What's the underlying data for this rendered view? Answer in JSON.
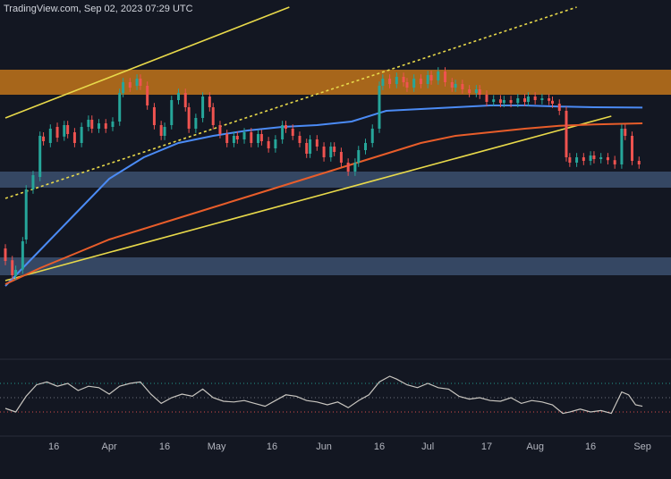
{
  "watermark": "TradingView.com, Sep 02, 2023 07:29 UTC",
  "chart_data": [
    {
      "type": "candlestick",
      "title": "",
      "x_ticks": [
        "16",
        "Apr",
        "16",
        "May",
        "16",
        "Jun",
        "16",
        "Jul",
        "17",
        "Aug",
        "16",
        "Sep"
      ],
      "x_range_days": [
        0,
        185
      ],
      "tick_days": [
        14,
        30,
        46,
        61,
        77,
        92,
        108,
        122,
        139,
        153,
        169,
        184
      ],
      "price_range": [
        0.0,
        1.0
      ],
      "zones": [
        {
          "name": "resistance-zone",
          "low": 0.735,
          "high": 0.805,
          "color": "#c8781a"
        },
        {
          "name": "support-zone",
          "low": 0.475,
          "high": 0.52,
          "color": "#3d5271"
        },
        {
          "name": "lower-support-zone",
          "low": 0.23,
          "high": 0.28,
          "color": "#3d5271"
        }
      ],
      "lines": [
        {
          "name": "upper-channel",
          "style": "solid",
          "color": "#e8d94a",
          "points": [
            [
              0,
              0.67
            ],
            [
              82,
              0.98
            ]
          ]
        },
        {
          "name": "mid-channel",
          "style": "dashed",
          "color": "#e8d94a",
          "points": [
            [
              0,
              0.445
            ],
            [
              165,
              0.98
            ]
          ]
        },
        {
          "name": "lower-channel",
          "style": "solid",
          "color": "#e8d94a",
          "points": [
            [
              0,
              0.215
            ],
            [
              175,
              0.675
            ]
          ]
        }
      ],
      "series": [
        {
          "name": "",
          "kind": "ma",
          "color": "#4b8bf5",
          "points": [
            [
              0,
              0.2
            ],
            [
              10,
              0.3
            ],
            [
              20,
              0.4
            ],
            [
              30,
              0.5
            ],
            [
              40,
              0.56
            ],
            [
              50,
              0.6
            ],
            [
              60,
              0.62
            ],
            [
              70,
              0.635
            ],
            [
              80,
              0.645
            ],
            [
              90,
              0.65
            ],
            [
              100,
              0.66
            ],
            [
              110,
              0.69
            ],
            [
              120,
              0.695
            ],
            [
              130,
              0.7
            ],
            [
              140,
              0.705
            ],
            [
              150,
              0.705
            ],
            [
              160,
              0.702
            ],
            [
              170,
              0.7
            ],
            [
              184,
              0.699
            ]
          ]
        },
        {
          "name": "",
          "kind": "ma",
          "color": "#e85d2a",
          "points": [
            [
              0,
              0.205
            ],
            [
              10,
              0.25
            ],
            [
              20,
              0.29
            ],
            [
              30,
              0.33
            ],
            [
              40,
              0.36
            ],
            [
              50,
              0.39
            ],
            [
              60,
              0.42
            ],
            [
              70,
              0.45
            ],
            [
              80,
              0.48
            ],
            [
              90,
              0.51
            ],
            [
              100,
              0.54
            ],
            [
              110,
              0.57
            ],
            [
              120,
              0.6
            ],
            [
              130,
              0.62
            ],
            [
              140,
              0.63
            ],
            [
              150,
              0.64
            ],
            [
              160,
              0.648
            ],
            [
              170,
              0.652
            ],
            [
              184,
              0.655
            ]
          ]
        }
      ],
      "candles": [
        {
          "x": 0,
          "o": 0.305,
          "c": 0.27
        },
        {
          "x": 2,
          "o": 0.272,
          "c": 0.23
        },
        {
          "x": 3,
          "o": 0.228,
          "c": 0.245
        },
        {
          "x": 5,
          "o": 0.246,
          "c": 0.325
        },
        {
          "x": 6,
          "o": 0.33,
          "c": 0.47
        },
        {
          "x": 8,
          "o": 0.47,
          "c": 0.51
        },
        {
          "x": 10,
          "o": 0.505,
          "c": 0.62
        },
        {
          "x": 11,
          "o": 0.618,
          "c": 0.605
        },
        {
          "x": 13,
          "o": 0.6,
          "c": 0.64
        },
        {
          "x": 15,
          "o": 0.645,
          "c": 0.615
        },
        {
          "x": 17,
          "o": 0.618,
          "c": 0.65
        },
        {
          "x": 18,
          "o": 0.65,
          "c": 0.625
        },
        {
          "x": 20,
          "o": 0.63,
          "c": 0.6
        },
        {
          "x": 22,
          "o": 0.6,
          "c": 0.645
        },
        {
          "x": 24,
          "o": 0.645,
          "c": 0.665
        },
        {
          "x": 25,
          "o": 0.665,
          "c": 0.64
        },
        {
          "x": 27,
          "o": 0.64,
          "c": 0.655
        },
        {
          "x": 29,
          "o": 0.655,
          "c": 0.64
        },
        {
          "x": 31,
          "o": 0.645,
          "c": 0.66
        },
        {
          "x": 33,
          "o": 0.66,
          "c": 0.74
        },
        {
          "x": 34,
          "o": 0.74,
          "c": 0.77
        },
        {
          "x": 36,
          "o": 0.77,
          "c": 0.755
        },
        {
          "x": 38,
          "o": 0.76,
          "c": 0.78
        },
        {
          "x": 39,
          "o": 0.78,
          "c": 0.76
        },
        {
          "x": 41,
          "o": 0.76,
          "c": 0.705
        },
        {
          "x": 43,
          "o": 0.7,
          "c": 0.65
        },
        {
          "x": 45,
          "o": 0.65,
          "c": 0.62
        },
        {
          "x": 46,
          "o": 0.62,
          "c": 0.645
        },
        {
          "x": 48,
          "o": 0.65,
          "c": 0.72
        },
        {
          "x": 50,
          "o": 0.72,
          "c": 0.74
        },
        {
          "x": 52,
          "o": 0.74,
          "c": 0.7
        },
        {
          "x": 53,
          "o": 0.7,
          "c": 0.64
        },
        {
          "x": 55,
          "o": 0.64,
          "c": 0.67
        },
        {
          "x": 57,
          "o": 0.67,
          "c": 0.73
        },
        {
          "x": 59,
          "o": 0.73,
          "c": 0.7
        },
        {
          "x": 60,
          "o": 0.7,
          "c": 0.65
        },
        {
          "x": 62,
          "o": 0.65,
          "c": 0.625
        },
        {
          "x": 64,
          "o": 0.625,
          "c": 0.6
        },
        {
          "x": 66,
          "o": 0.6,
          "c": 0.62
        },
        {
          "x": 67,
          "o": 0.62,
          "c": 0.61
        },
        {
          "x": 69,
          "o": 0.61,
          "c": 0.63
        },
        {
          "x": 71,
          "o": 0.63,
          "c": 0.6
        },
        {
          "x": 73,
          "o": 0.6,
          "c": 0.625
        },
        {
          "x": 74,
          "o": 0.625,
          "c": 0.605
        },
        {
          "x": 76,
          "o": 0.605,
          "c": 0.585
        },
        {
          "x": 78,
          "o": 0.585,
          "c": 0.61
        },
        {
          "x": 80,
          "o": 0.61,
          "c": 0.65
        },
        {
          "x": 81,
          "o": 0.65,
          "c": 0.64
        },
        {
          "x": 83,
          "o": 0.64,
          "c": 0.62
        },
        {
          "x": 85,
          "o": 0.62,
          "c": 0.6
        },
        {
          "x": 87,
          "o": 0.6,
          "c": 0.57
        },
        {
          "x": 88,
          "o": 0.57,
          "c": 0.61
        },
        {
          "x": 90,
          "o": 0.61,
          "c": 0.59
        },
        {
          "x": 92,
          "o": 0.59,
          "c": 0.56
        },
        {
          "x": 94,
          "o": 0.56,
          "c": 0.59
        },
        {
          "x": 95,
          "o": 0.59,
          "c": 0.575
        },
        {
          "x": 97,
          "o": 0.575,
          "c": 0.545
        },
        {
          "x": 99,
          "o": 0.545,
          "c": 0.52
        },
        {
          "x": 101,
          "o": 0.52,
          "c": 0.545
        },
        {
          "x": 102,
          "o": 0.545,
          "c": 0.58
        },
        {
          "x": 104,
          "o": 0.58,
          "c": 0.6
        },
        {
          "x": 106,
          "o": 0.6,
          "c": 0.64
        },
        {
          "x": 108,
          "o": 0.64,
          "c": 0.76
        },
        {
          "x": 109,
          "o": 0.76,
          "c": 0.78
        },
        {
          "x": 111,
          "o": 0.78,
          "c": 0.765
        },
        {
          "x": 113,
          "o": 0.765,
          "c": 0.785
        },
        {
          "x": 115,
          "o": 0.785,
          "c": 0.77
        },
        {
          "x": 116,
          "o": 0.77,
          "c": 0.755
        },
        {
          "x": 118,
          "o": 0.755,
          "c": 0.78
        },
        {
          "x": 120,
          "o": 0.78,
          "c": 0.765
        },
        {
          "x": 122,
          "o": 0.765,
          "c": 0.79
        },
        {
          "x": 123,
          "o": 0.79,
          "c": 0.775
        },
        {
          "x": 125,
          "o": 0.775,
          "c": 0.8
        },
        {
          "x": 127,
          "o": 0.8,
          "c": 0.77
        },
        {
          "x": 129,
          "o": 0.77,
          "c": 0.755
        },
        {
          "x": 130,
          "o": 0.755,
          "c": 0.765
        },
        {
          "x": 132,
          "o": 0.765,
          "c": 0.75
        },
        {
          "x": 134,
          "o": 0.75,
          "c": 0.74
        },
        {
          "x": 136,
          "o": 0.74,
          "c": 0.75
        },
        {
          "x": 137,
          "o": 0.75,
          "c": 0.735
        },
        {
          "x": 139,
          "o": 0.735,
          "c": 0.715
        },
        {
          "x": 141,
          "o": 0.715,
          "c": 0.722
        },
        {
          "x": 143,
          "o": 0.722,
          "c": 0.712
        },
        {
          "x": 144,
          "o": 0.712,
          "c": 0.72
        },
        {
          "x": 146,
          "o": 0.72,
          "c": 0.712
        },
        {
          "x": 148,
          "o": 0.712,
          "c": 0.725
        },
        {
          "x": 150,
          "o": 0.725,
          "c": 0.715
        },
        {
          "x": 151,
          "o": 0.715,
          "c": 0.73
        },
        {
          "x": 153,
          "o": 0.73,
          "c": 0.72
        },
        {
          "x": 155,
          "o": 0.72,
          "c": 0.725
        },
        {
          "x": 157,
          "o": 0.725,
          "c": 0.718
        },
        {
          "x": 158,
          "o": 0.718,
          "c": 0.71
        },
        {
          "x": 160,
          "o": 0.71,
          "c": 0.69
        },
        {
          "x": 162,
          "o": 0.69,
          "c": 0.56
        },
        {
          "x": 163,
          "o": 0.56,
          "c": 0.545
        },
        {
          "x": 165,
          "o": 0.545,
          "c": 0.56
        },
        {
          "x": 167,
          "o": 0.56,
          "c": 0.55
        },
        {
          "x": 169,
          "o": 0.55,
          "c": 0.565
        },
        {
          "x": 170,
          "o": 0.565,
          "c": 0.555
        },
        {
          "x": 172,
          "o": 0.555,
          "c": 0.56
        },
        {
          "x": 174,
          "o": 0.56,
          "c": 0.552
        },
        {
          "x": 176,
          "o": 0.552,
          "c": 0.54
        },
        {
          "x": 178,
          "o": 0.54,
          "c": 0.64
        },
        {
          "x": 179,
          "o": 0.64,
          "c": 0.62
        },
        {
          "x": 181,
          "o": 0.62,
          "c": 0.55
        },
        {
          "x": 183,
          "o": 0.55,
          "c": 0.54
        }
      ]
    },
    {
      "type": "line",
      "title": "",
      "ylim": [
        0,
        100
      ],
      "levels": [
        70,
        50,
        30
      ],
      "series": [
        {
          "name": "",
          "color": "#c9c6c0",
          "points": [
            [
              0,
              35
            ],
            [
              3,
              30
            ],
            [
              6,
              52
            ],
            [
              9,
              68
            ],
            [
              12,
              72
            ],
            [
              15,
              66
            ],
            [
              18,
              70
            ],
            [
              21,
              60
            ],
            [
              24,
              66
            ],
            [
              27,
              64
            ],
            [
              30,
              55
            ],
            [
              33,
              66
            ],
            [
              36,
              70
            ],
            [
              39,
              72
            ],
            [
              42,
              55
            ],
            [
              45,
              42
            ],
            [
              48,
              50
            ],
            [
              51,
              55
            ],
            [
              54,
              52
            ],
            [
              57,
              62
            ],
            [
              60,
              50
            ],
            [
              63,
              45
            ],
            [
              66,
              44
            ],
            [
              69,
              46
            ],
            [
              72,
              42
            ],
            [
              75,
              38
            ],
            [
              78,
              46
            ],
            [
              81,
              54
            ],
            [
              84,
              52
            ],
            [
              87,
              46
            ],
            [
              90,
              44
            ],
            [
              93,
              40
            ],
            [
              96,
              44
            ],
            [
              99,
              36
            ],
            [
              102,
              46
            ],
            [
              105,
              54
            ],
            [
              108,
              72
            ],
            [
              111,
              80
            ],
            [
              113,
              76
            ],
            [
              116,
              68
            ],
            [
              119,
              64
            ],
            [
              122,
              70
            ],
            [
              125,
              64
            ],
            [
              128,
              62
            ],
            [
              131,
              52
            ],
            [
              134,
              48
            ],
            [
              137,
              50
            ],
            [
              140,
              46
            ],
            [
              143,
              45
            ],
            [
              146,
              50
            ],
            [
              149,
              42
            ],
            [
              152,
              46
            ],
            [
              155,
              44
            ],
            [
              158,
              40
            ],
            [
              161,
              28
            ],
            [
              163,
              30
            ],
            [
              166,
              34
            ],
            [
              169,
              30
            ],
            [
              172,
              32
            ],
            [
              175,
              28
            ],
            [
              178,
              58
            ],
            [
              180,
              54
            ],
            [
              182,
              40
            ],
            [
              184,
              38
            ]
          ]
        }
      ]
    }
  ]
}
